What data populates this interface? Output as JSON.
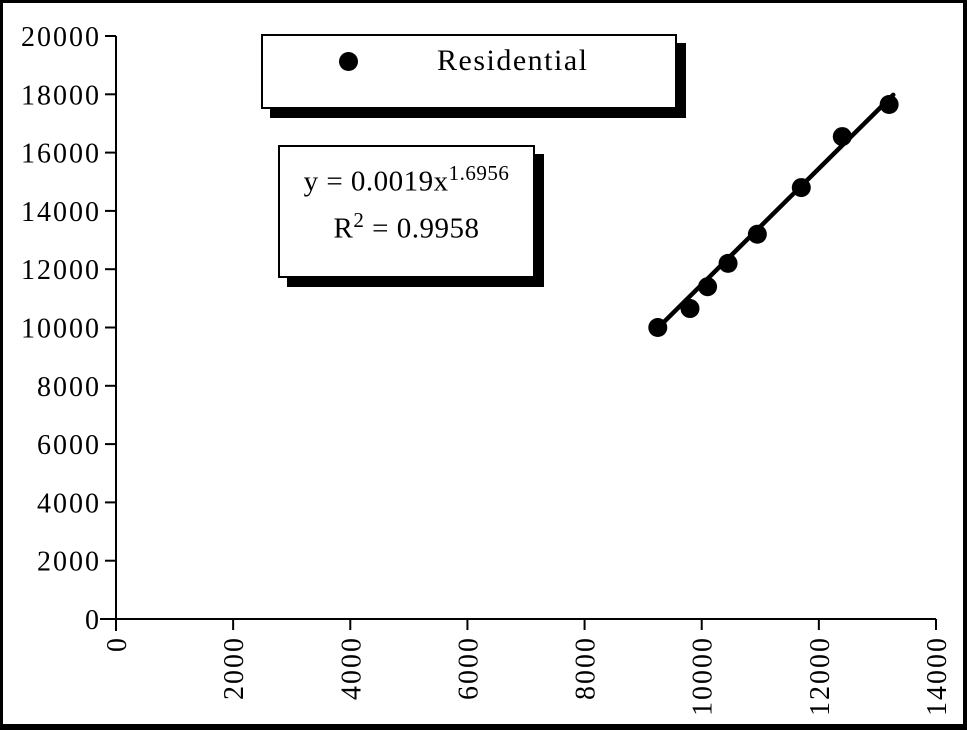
{
  "page": {
    "background": "#ffffff",
    "border_color": "#000000",
    "accent_color": "#000000"
  },
  "legend": {
    "label": "Residential",
    "marker": "filled-circle",
    "marker_color": "#000000"
  },
  "annotation": {
    "equation_base": "y = 0.0019x",
    "equation_exponent": "1.6956",
    "r2_base": "R",
    "r2_exponent": "2",
    "r2_rest": " = 0.9958"
  },
  "chart_data": {
    "type": "scatter",
    "title": "",
    "xlabel": "",
    "ylabel": "",
    "grid": false,
    "legend_position": "top-center",
    "xlim": [
      0,
      14000
    ],
    "ylim": [
      0,
      20000
    ],
    "x_ticks": [
      0,
      2000,
      4000,
      6000,
      8000,
      10000,
      12000,
      14000
    ],
    "y_ticks": [
      0,
      2000,
      4000,
      6000,
      8000,
      10000,
      12000,
      14000,
      16000,
      18000,
      20000
    ],
    "x_tick_label_rotation": -90,
    "series": [
      {
        "name": "Residential",
        "marker": "circle",
        "color": "#000000",
        "points": [
          [
            9250,
            10000
          ],
          [
            9800,
            10650
          ],
          [
            10100,
            11400
          ],
          [
            10450,
            12200
          ],
          [
            10950,
            13200
          ],
          [
            11700,
            14800
          ],
          [
            12400,
            16550
          ],
          [
            13200,
            17650
          ]
        ]
      }
    ],
    "trendline": {
      "type": "power",
      "equation": "y = 0.0019x^1.6956",
      "r_squared": 0.9958,
      "color": "#000000",
      "x_start": 9250,
      "y_start": 9980,
      "x_end": 13270,
      "y_end": 17980
    }
  }
}
